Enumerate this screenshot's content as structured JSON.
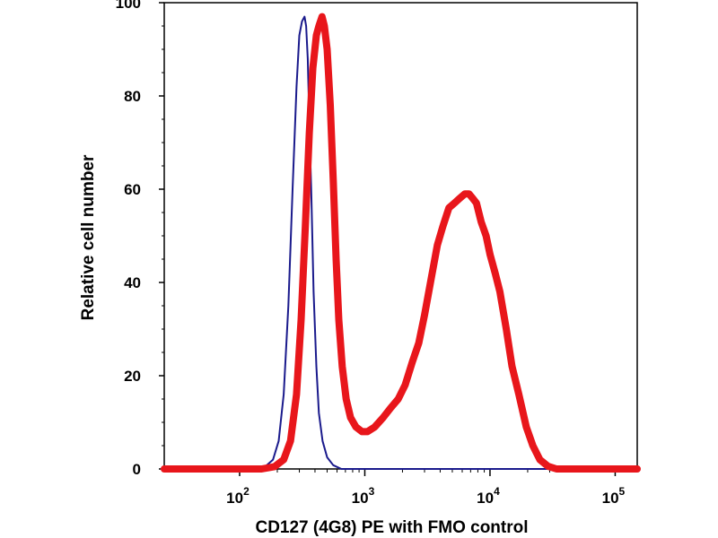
{
  "chart_data": {
    "type": "line",
    "title": "",
    "xlabel": "CD127 (4G8) PE with FMO control",
    "ylabel": "Relative cell number",
    "x_scale": "log",
    "xlim": [
      25,
      150000
    ],
    "ylim": [
      0,
      100
    ],
    "grid": false,
    "legend": "none",
    "x_ticks": [
      {
        "base": "10",
        "exp": "2",
        "value": 100
      },
      {
        "base": "10",
        "exp": "3",
        "value": 1000
      },
      {
        "base": "10",
        "exp": "4",
        "value": 10000
      },
      {
        "base": "10",
        "exp": "5",
        "value": 100000
      }
    ],
    "y_ticks": [
      {
        "label": "0",
        "value": 0
      },
      {
        "label": "20",
        "value": 20
      },
      {
        "label": "40",
        "value": 40
      },
      {
        "label": "60",
        "value": 60
      },
      {
        "label": "80",
        "value": 80
      },
      {
        "label": "100",
        "value": 100
      }
    ],
    "series": [
      {
        "color": "#1a1a8c",
        "line_width": 2,
        "points": [
          [
            25,
            0
          ],
          [
            120,
            0
          ],
          [
            160,
            0.5
          ],
          [
            185,
            2
          ],
          [
            205,
            6
          ],
          [
            225,
            16
          ],
          [
            245,
            35
          ],
          [
            265,
            60
          ],
          [
            285,
            82
          ],
          [
            300,
            93
          ],
          [
            315,
            96
          ],
          [
            330,
            97
          ],
          [
            340,
            95
          ],
          [
            350,
            88
          ],
          [
            360,
            75
          ],
          [
            375,
            58
          ],
          [
            390,
            38
          ],
          [
            410,
            22
          ],
          [
            430,
            12
          ],
          [
            460,
            6
          ],
          [
            500,
            2.5
          ],
          [
            560,
            0.8
          ],
          [
            650,
            0
          ],
          [
            150000,
            0
          ]
        ]
      },
      {
        "color": "#e8161b",
        "line_width": 8,
        "points": [
          [
            25,
            0
          ],
          [
            150,
            0
          ],
          [
            190,
            0.5
          ],
          [
            225,
            2
          ],
          [
            255,
            6
          ],
          [
            285,
            16
          ],
          [
            310,
            32
          ],
          [
            335,
            52
          ],
          [
            360,
            72
          ],
          [
            385,
            86
          ],
          [
            410,
            93
          ],
          [
            430,
            95
          ],
          [
            455,
            97
          ],
          [
            475,
            95
          ],
          [
            500,
            90
          ],
          [
            530,
            78
          ],
          [
            560,
            62
          ],
          [
            590,
            45
          ],
          [
            620,
            32
          ],
          [
            660,
            22
          ],
          [
            710,
            15
          ],
          [
            770,
            11
          ],
          [
            850,
            9
          ],
          [
            950,
            8
          ],
          [
            1050,
            8
          ],
          [
            1200,
            9
          ],
          [
            1400,
            11
          ],
          [
            1600,
            13
          ],
          [
            1850,
            15
          ],
          [
            2100,
            18
          ],
          [
            2400,
            23
          ],
          [
            2700,
            27
          ],
          [
            3000,
            33
          ],
          [
            3400,
            41
          ],
          [
            3800,
            48
          ],
          [
            4200,
            52
          ],
          [
            4700,
            56
          ],
          [
            5200,
            57
          ],
          [
            5700,
            58
          ],
          [
            6300,
            59
          ],
          [
            6800,
            59
          ],
          [
            7300,
            58
          ],
          [
            7800,
            57
          ],
          [
            8500,
            53
          ],
          [
            9300,
            50
          ],
          [
            10000,
            46
          ],
          [
            11000,
            42
          ],
          [
            12000,
            38
          ],
          [
            13500,
            30
          ],
          [
            15000,
            22
          ],
          [
            17000,
            16
          ],
          [
            19500,
            9
          ],
          [
            22000,
            5
          ],
          [
            25000,
            2
          ],
          [
            29000,
            0.6
          ],
          [
            34000,
            0
          ],
          [
            150000,
            0
          ]
        ]
      }
    ]
  }
}
